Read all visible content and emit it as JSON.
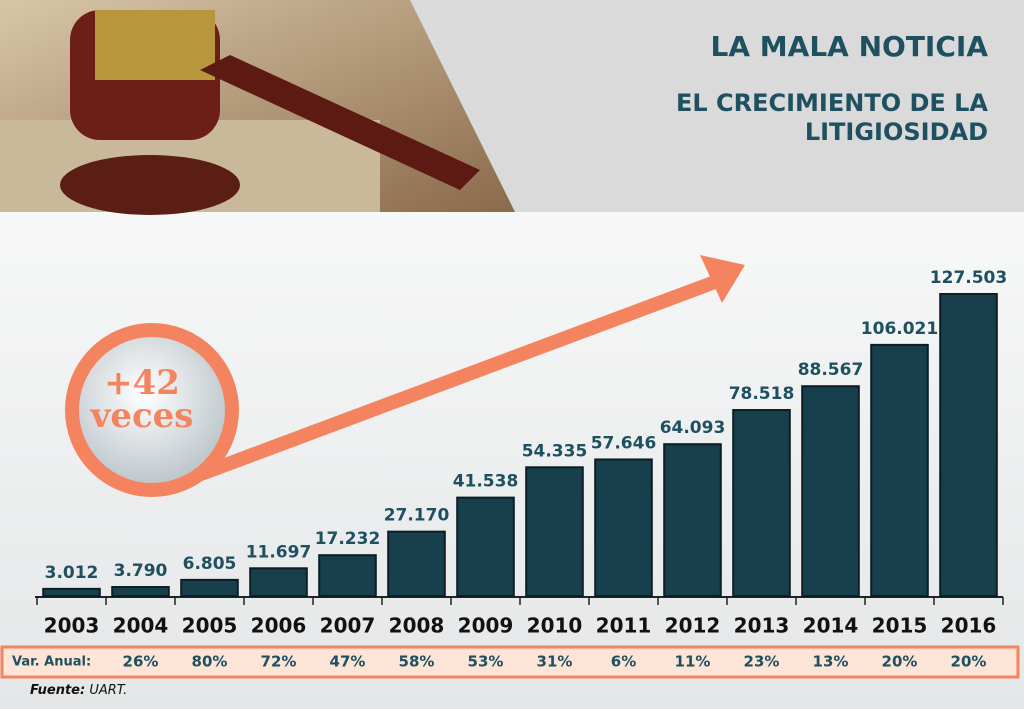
{
  "chart_data": {
    "type": "bar",
    "title": "LA MALA NOTICIA",
    "subtitle": [
      "EL CRECIMIENTO DE LA",
      "LITIGIOSIDAD"
    ],
    "categories": [
      "2003",
      "2004",
      "2005",
      "2006",
      "2007",
      "2008",
      "2009",
      "2010",
      "2011",
      "2012",
      "2013",
      "2014",
      "2015",
      "2016"
    ],
    "values": [
      3012,
      3790,
      6805,
      11697,
      17232,
      27170,
      41538,
      54335,
      57646,
      64093,
      78518,
      88567,
      106021,
      127503
    ],
    "value_labels": [
      "3.012",
      "3.790",
      "6.805",
      "11.697",
      "17.232",
      "27.170",
      "41.538",
      "54.335",
      "57.646",
      "64.093",
      "78.518",
      "88.567",
      "106.021",
      "127.503"
    ],
    "color": "#173f4c",
    "annotation": [
      "+42",
      "veces"
    ],
    "annual_change": {
      "label": "Var. Anual:",
      "values": [
        "26%",
        "80%",
        "72%",
        "47%",
        "58%",
        "53%",
        "31%",
        "6%",
        "11%",
        "23%",
        "13%",
        "20%",
        "20%"
      ]
    },
    "source": {
      "label": "Fuente:",
      "text": "UART."
    }
  }
}
